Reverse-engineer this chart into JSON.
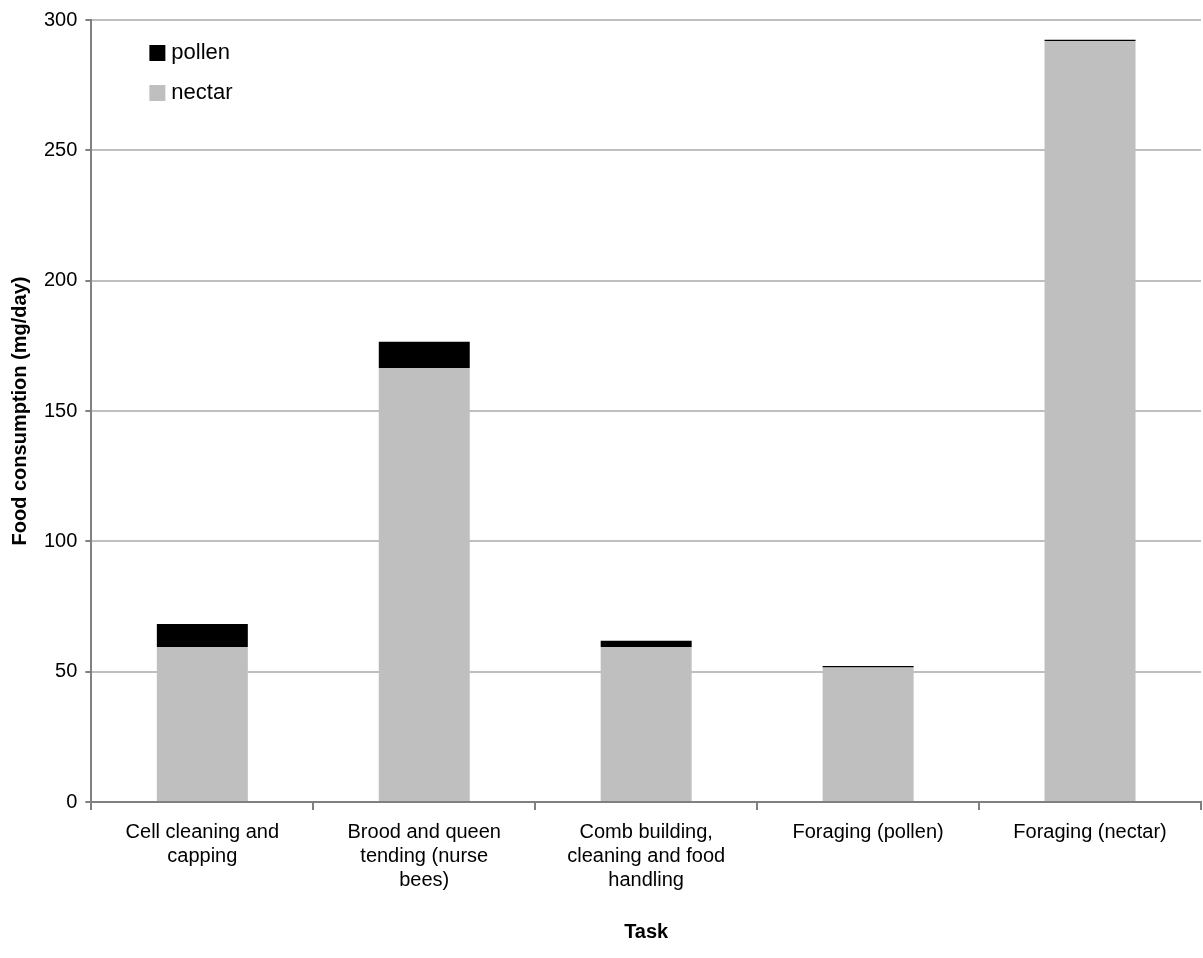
{
  "chart_data": {
    "type": "bar",
    "xlabel": "Task",
    "ylabel": "Food consumption (mg/day)",
    "categories": [
      "Cell cleaning and capping",
      "Brood and queen tending (nurse bees)",
      "Comb building, cleaning and food handling",
      "Foraging (pollen)",
      "Foraging (nectar)"
    ],
    "stacked": true,
    "series": [
      {
        "name": "nectar",
        "color": "#bfbfbf",
        "values": [
          59.5,
          166.5,
          59.5,
          51.6,
          291.9
        ]
      },
      {
        "name": "pollen",
        "color": "#000000",
        "values": [
          8.8,
          10.1,
          2.4,
          0.6,
          0.5
        ]
      }
    ],
    "ylim": [
      0,
      300
    ],
    "yticks": [
      0,
      50,
      100,
      150,
      200,
      250,
      300
    ],
    "grid": "y",
    "legend": "top left"
  }
}
